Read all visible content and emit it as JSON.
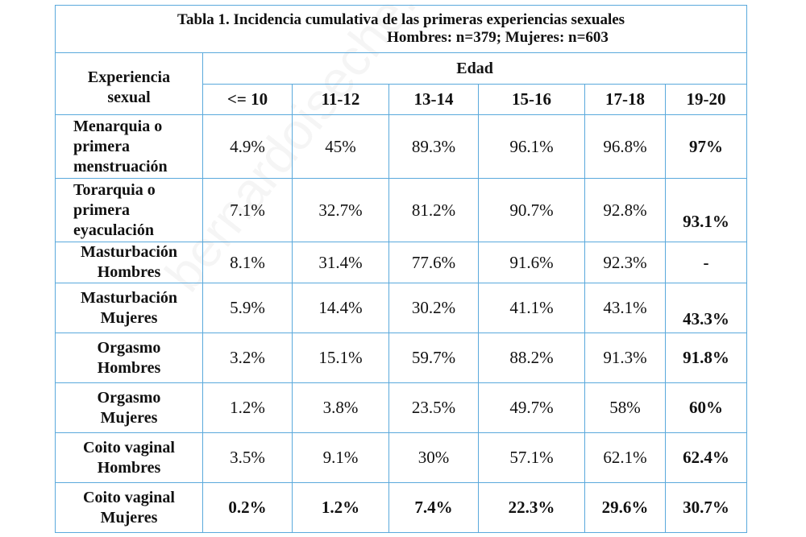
{
  "title": "Tabla 1. Incidencia cumulativa de las primeras experiencias sexuales",
  "subtitle": "Hombres: n=379; Mujeres: n=603",
  "row_header": [
    "Experiencia",
    "sexual"
  ],
  "group_header": "Edad",
  "columns": [
    "<= 10",
    "11-12",
    "13-14",
    "15-16",
    "17-18",
    "19-20"
  ],
  "rows": [
    {
      "label": [
        "Menarquia o",
        "primera",
        "menstruación"
      ],
      "values": [
        "4.9%",
        "45%",
        "89.3%",
        "96.1%",
        "96.8%",
        "97%"
      ]
    },
    {
      "label": [
        "Torarquia o",
        "primera",
        "eyaculación"
      ],
      "values": [
        "7.1%",
        "32.7%",
        "81.2%",
        "90.7%",
        "92.8%",
        "93.1%"
      ]
    },
    {
      "label": [
        "Masturbación",
        "Hombres"
      ],
      "values": [
        "8.1%",
        "31.4%",
        "77.6%",
        "91.6%",
        "92.3%",
        "-"
      ]
    },
    {
      "label": [
        "Masturbación",
        "Mujeres"
      ],
      "values": [
        "5.9%",
        "14.4%",
        "30.2%",
        "41.1%",
        "43.1%",
        "43.3%"
      ]
    },
    {
      "label": [
        "Orgasmo",
        "Hombres"
      ],
      "values": [
        "3.2%",
        "15.1%",
        "59.7%",
        "88.2%",
        "91.3%",
        "91.8%"
      ]
    },
    {
      "label": [
        "Orgasmo",
        "Mujeres"
      ],
      "values": [
        "1.2%",
        "3.8%",
        "23.5%",
        "49.7%",
        "58%",
        "60%"
      ]
    },
    {
      "label": [
        "Coito vaginal",
        "Hombres"
      ],
      "values": [
        "3.5%",
        "9.1%",
        "30%",
        "57.1%",
        "62.1%",
        "62.4%"
      ]
    },
    {
      "label": [
        "Coito vaginal",
        "Mujeres"
      ],
      "values": [
        "0.2%",
        "1.2%",
        "7.4%",
        "22.3%",
        "29.6%",
        "30.7%"
      ]
    }
  ],
  "watermark": "bernardoiseche.com"
}
